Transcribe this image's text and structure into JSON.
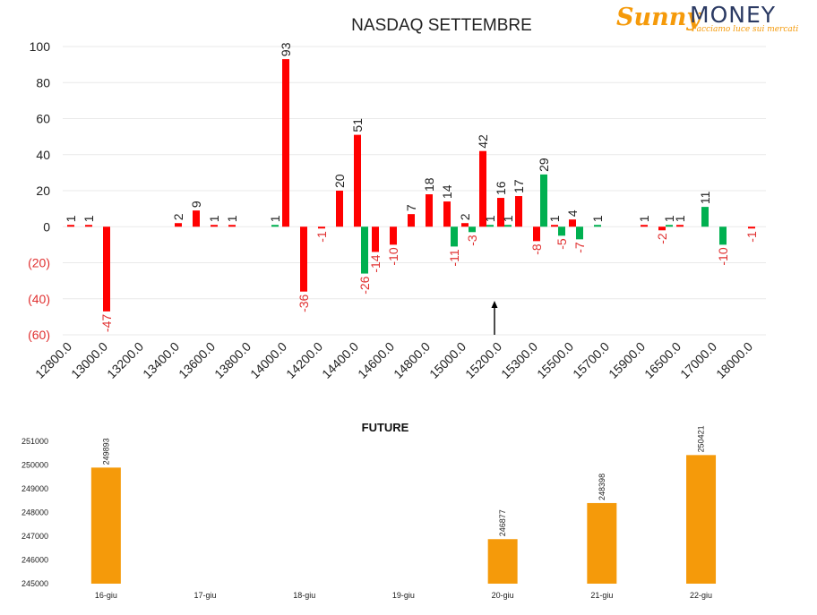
{
  "logo": {
    "brand_part1": "Sunny",
    "brand_part2": "MONEY",
    "tagline": "Facciamo luce sui mercati"
  },
  "colors": {
    "red": "#ff0000",
    "green": "#00b050",
    "orange": "#f59a0a",
    "negative_label": "#e03030",
    "grid": "#e9e9e9"
  },
  "chart_data": [
    {
      "type": "bar",
      "title": "NASDAQ SETTEMBRE",
      "ylim": [
        -60,
        100
      ],
      "yticks": [
        100,
        80,
        60,
        40,
        20,
        0,
        -20,
        -40,
        -60
      ],
      "ytick_labels": [
        "100",
        "80",
        "60",
        "40",
        "20",
        "0",
        "(20)",
        "(40)",
        "(60)"
      ],
      "grid": true,
      "categories": [
        "12800.0",
        "12900.0",
        "13000.0",
        "13100.0",
        "13200.0",
        "13300.0",
        "13400.0",
        "13500.0",
        "13600.0",
        "13700.0",
        "13800.0",
        "13900.0",
        "14000.0",
        "14100.0",
        "14200.0",
        "14300.0",
        "14400.0",
        "14500.0",
        "14600.0",
        "14700.0",
        "14800.0",
        "14900.0",
        "15000.0",
        "15100.0",
        "15200.0",
        "15250.0",
        "15300.0",
        "15400.0",
        "15500.0",
        "15600.0",
        "15700.0",
        "15800.0",
        "15900.0",
        "16000.0",
        "16500.0",
        "16750.0",
        "17000.0",
        "17500.0",
        "18000.0"
      ],
      "x_tick_labels": [
        "12800.0",
        "13000.0",
        "13200.0",
        "13400.0",
        "13600.0",
        "13800.0",
        "14000.0",
        "14200.0",
        "14400.0",
        "14600.0",
        "14800.0",
        "15000.0",
        "15200.0",
        "15300.0",
        "15500.0",
        "15700.0",
        "15900.0",
        "16500.0",
        "17000.0",
        "18000.0"
      ],
      "series": [
        {
          "color": "red",
          "values": [
            1,
            1,
            -47,
            null,
            null,
            null,
            2,
            9,
            1,
            1,
            null,
            null,
            93,
            -36,
            -1,
            20,
            51,
            -14,
            -10,
            7,
            18,
            14,
            2,
            42,
            16,
            17,
            -8,
            1,
            4,
            null,
            null,
            null,
            1,
            -2,
            1,
            null,
            null,
            null,
            -1
          ]
        },
        {
          "color": "green",
          "values": [
            null,
            null,
            null,
            null,
            null,
            null,
            null,
            null,
            null,
            null,
            null,
            1,
            null,
            null,
            null,
            null,
            -26,
            null,
            null,
            null,
            null,
            -11,
            -3,
            1,
            1,
            null,
            29,
            -5,
            -7,
            1,
            null,
            null,
            null,
            1,
            null,
            11,
            -10,
            null,
            null
          ]
        }
      ]
    },
    {
      "type": "bar",
      "title": "FUTURE",
      "categories": [
        "16-giu",
        "17-giu",
        "18-giu",
        "19-giu",
        "20-giu",
        "21-giu",
        "22-giu"
      ],
      "values": [
        249893,
        null,
        null,
        null,
        246877,
        248398,
        250421
      ],
      "value_labels": [
        "249893",
        "",
        "",
        "",
        "246877",
        "248398",
        "250421"
      ],
      "ylim": [
        245000,
        251000
      ],
      "yticks": [
        251000,
        250000,
        249000,
        248000,
        247000,
        246000,
        245000
      ],
      "color": "orange"
    }
  ]
}
